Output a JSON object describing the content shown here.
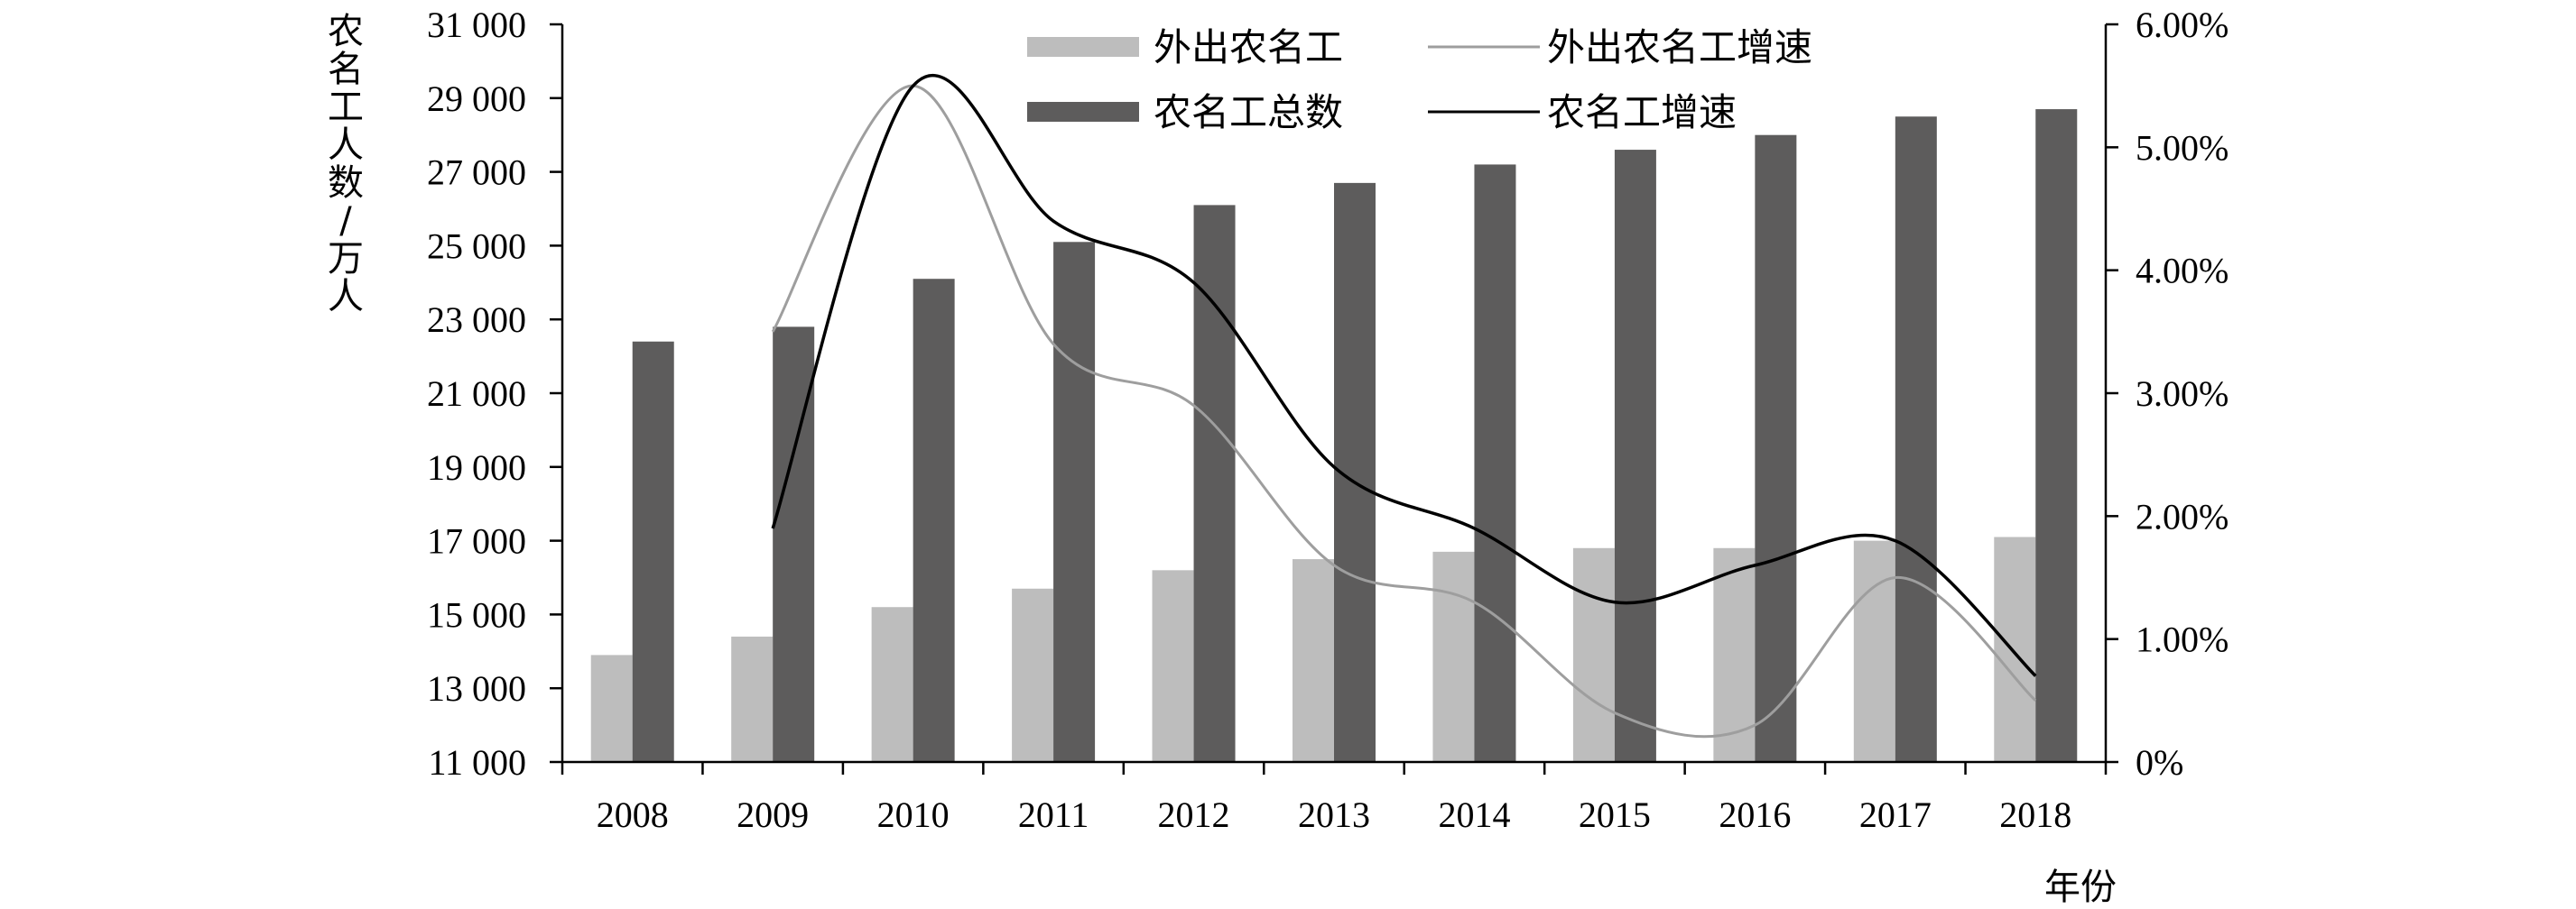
{
  "chart_data": {
    "type": "bar",
    "categories": [
      "2008",
      "2009",
      "2010",
      "2011",
      "2012",
      "2013",
      "2014",
      "2015",
      "2016",
      "2017",
      "2018"
    ],
    "series": [
      {
        "name": "外出农名工",
        "kind": "bar",
        "axis": "left",
        "color": "#bdbdbd",
        "values": [
          13900,
          14400,
          15200,
          15700,
          16200,
          16500,
          16700,
          16800,
          16800,
          17000,
          17100
        ]
      },
      {
        "name": "农名工总数",
        "kind": "bar",
        "axis": "left",
        "color": "#5d5c5c",
        "values": [
          22400,
          22800,
          24100,
          25100,
          26100,
          26700,
          27200,
          27600,
          28000,
          28500,
          28700
        ]
      },
      {
        "name": "外出农名工增速",
        "kind": "line",
        "axis": "right",
        "color": "#9e9e9e",
        "values": [
          null,
          3.5,
          5.5,
          3.4,
          2.9,
          1.6,
          1.3,
          0.4,
          0.3,
          1.5,
          0.5
        ]
      },
      {
        "name": "农名工增速",
        "kind": "line",
        "axis": "right",
        "color": "#000000",
        "values": [
          null,
          1.9,
          5.5,
          4.4,
          3.9,
          2.4,
          1.9,
          1.3,
          1.6,
          1.8,
          0.7
        ]
      }
    ],
    "ylabel": "农名工人数/万人",
    "xlabel": "年份",
    "ylim": [
      11000,
      31000
    ],
    "y_ticks": [
      "11 000",
      "13 000",
      "15 000",
      "17 000",
      "19 000",
      "21 000",
      "23 000",
      "25 000",
      "27 000",
      "29 000",
      "31 000"
    ],
    "y2lim": [
      0,
      6
    ],
    "y2_ticks": [
      "0%",
      "1.00%",
      "2.00%",
      "3.00%",
      "4.00%",
      "5.00%",
      "6.00%"
    ],
    "legend_position": "top-center",
    "grid": false
  }
}
